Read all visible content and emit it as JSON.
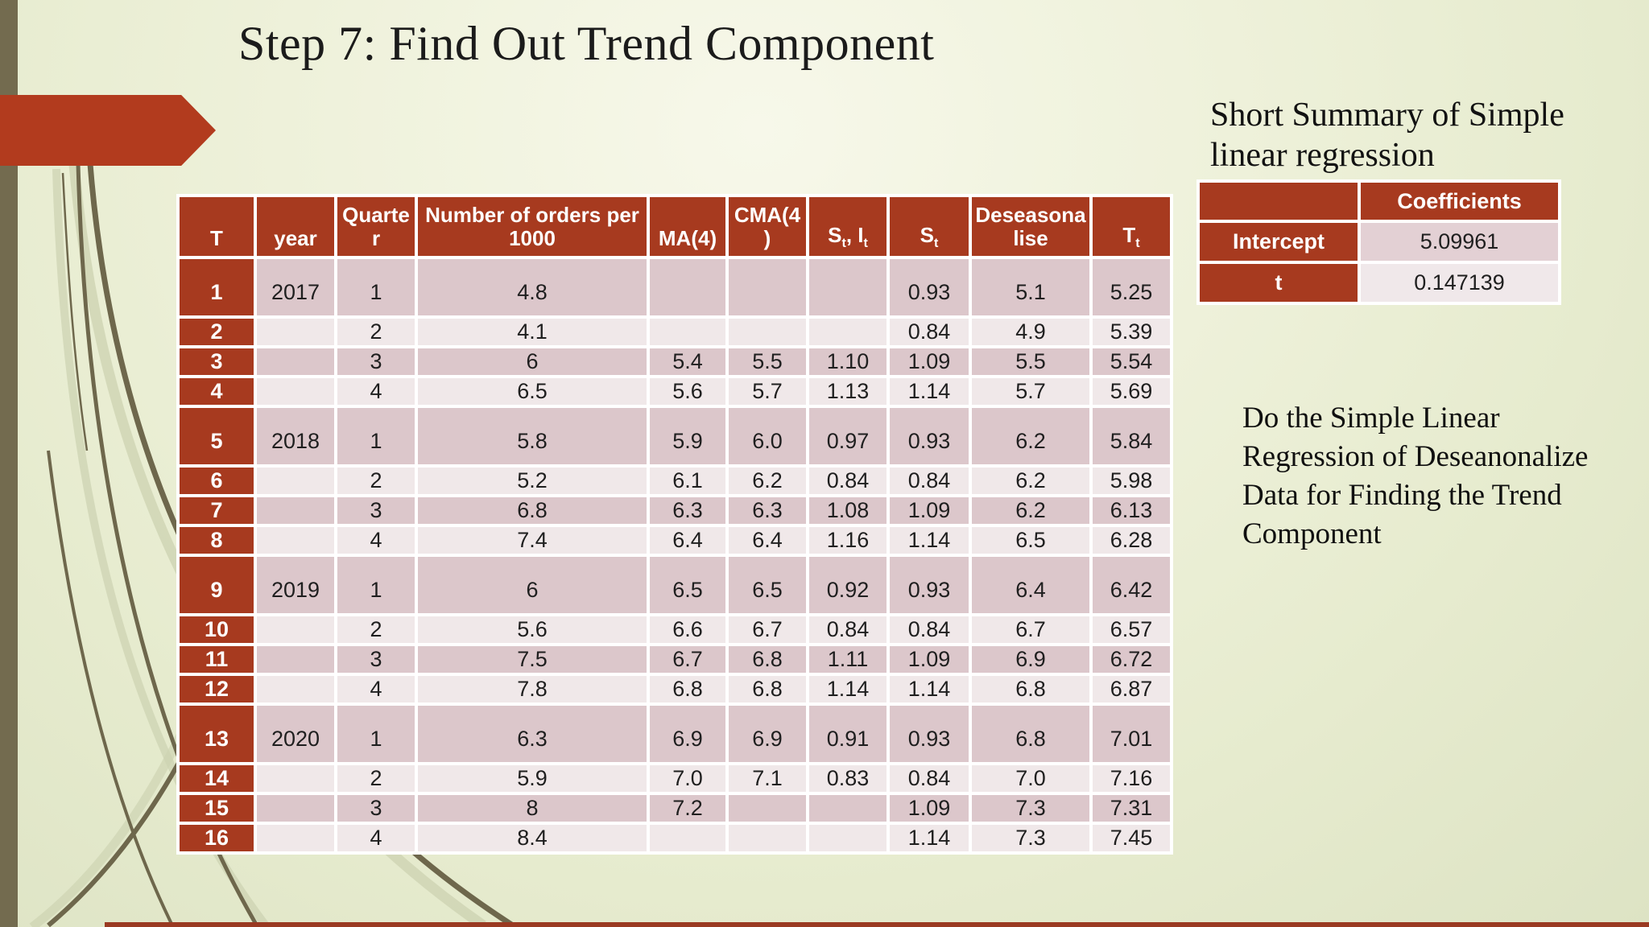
{
  "slide": {
    "title": "Step 7: Find Out Trend Component",
    "summary_heading": "Short Summary of Simple linear regression",
    "note": "Do the Simple Linear Regression of Deseanonalize Data for Finding the Trend Component"
  },
  "colors": {
    "accent_red": "#a73a1f",
    "arrow_red": "#b23b1e",
    "olive_sidebar": "#736b4f",
    "row_pink_dark": "#dcc7cb",
    "row_pink_light": "#f0e8e9",
    "background_green": "#e9edd2"
  },
  "main_table": {
    "headers": [
      "T",
      "year",
      "Quarter",
      "Number of orders per 1000",
      "MA(4)",
      "CMA(4)",
      "S_t, I_t",
      "S_t",
      "Deseasonalise",
      "T_t"
    ],
    "rows": [
      [
        "1",
        "2017",
        "1",
        "4.8",
        "",
        "",
        "",
        "0.93",
        "5.1",
        "5.25"
      ],
      [
        "2",
        "",
        "2",
        "4.1",
        "",
        "",
        "",
        "0.84",
        "4.9",
        "5.39"
      ],
      [
        "3",
        "",
        "3",
        "6",
        "5.4",
        "5.5",
        "1.10",
        "1.09",
        "5.5",
        "5.54"
      ],
      [
        "4",
        "",
        "4",
        "6.5",
        "5.6",
        "5.7",
        "1.13",
        "1.14",
        "5.7",
        "5.69"
      ],
      [
        "5",
        "2018",
        "1",
        "5.8",
        "5.9",
        "6.0",
        "0.97",
        "0.93",
        "6.2",
        "5.84"
      ],
      [
        "6",
        "",
        "2",
        "5.2",
        "6.1",
        "6.2",
        "0.84",
        "0.84",
        "6.2",
        "5.98"
      ],
      [
        "7",
        "",
        "3",
        "6.8",
        "6.3",
        "6.3",
        "1.08",
        "1.09",
        "6.2",
        "6.13"
      ],
      [
        "8",
        "",
        "4",
        "7.4",
        "6.4",
        "6.4",
        "1.16",
        "1.14",
        "6.5",
        "6.28"
      ],
      [
        "9",
        "2019",
        "1",
        "6",
        "6.5",
        "6.5",
        "0.92",
        "0.93",
        "6.4",
        "6.42"
      ],
      [
        "10",
        "",
        "2",
        "5.6",
        "6.6",
        "6.7",
        "0.84",
        "0.84",
        "6.7",
        "6.57"
      ],
      [
        "11",
        "",
        "3",
        "7.5",
        "6.7",
        "6.8",
        "1.11",
        "1.09",
        "6.9",
        "6.72"
      ],
      [
        "12",
        "",
        "4",
        "7.8",
        "6.8",
        "6.8",
        "1.14",
        "1.14",
        "6.8",
        "6.87"
      ],
      [
        "13",
        "2020",
        "1",
        "6.3",
        "6.9",
        "6.9",
        "0.91",
        "0.93",
        "6.8",
        "7.01"
      ],
      [
        "14",
        "",
        "2",
        "5.9",
        "7.0",
        "7.1",
        "0.83",
        "0.84",
        "7.0",
        "7.16"
      ],
      [
        "15",
        "",
        "3",
        "8",
        "7.2",
        "",
        "",
        "1.09",
        "7.3",
        "7.31"
      ],
      [
        "16",
        "",
        "4",
        "8.4",
        "",
        "",
        "",
        "1.14",
        "7.3",
        "7.45"
      ]
    ]
  },
  "regression_table": {
    "header": "Coefficients",
    "rows": [
      {
        "label": "Intercept",
        "value": "5.09961"
      },
      {
        "label": "t",
        "value": "0.147139"
      }
    ]
  }
}
